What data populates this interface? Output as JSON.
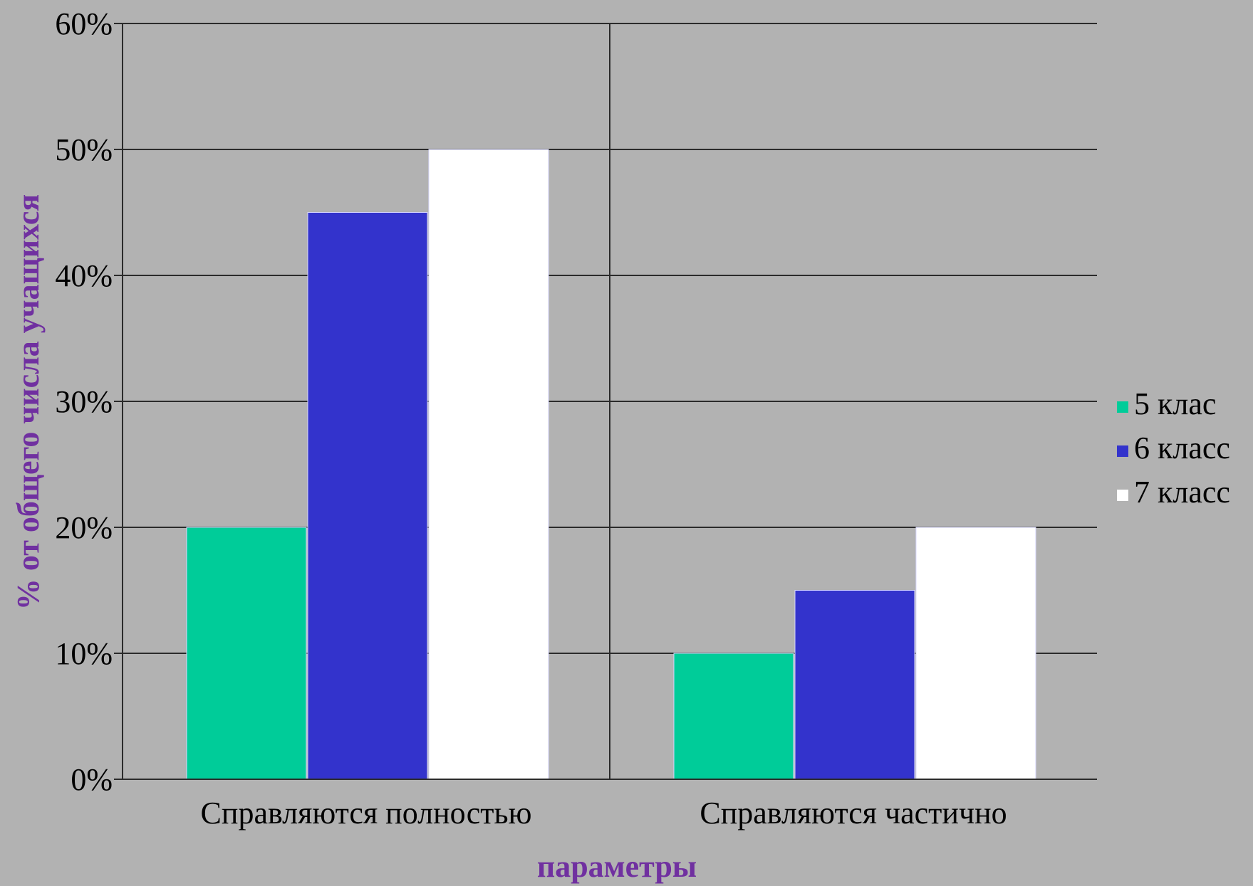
{
  "chart_data": {
    "type": "bar",
    "title": "",
    "xlabel": "параметры",
    "ylabel": "% от общего числа учащихся",
    "categories": [
      "Справляются полностью",
      "Справляются частично"
    ],
    "series": [
      {
        "name": "5 клас",
        "values": [
          20,
          10
        ],
        "color": "#00cc99"
      },
      {
        "name": "6 класс",
        "values": [
          45,
          15
        ],
        "color": "#3333cc"
      },
      {
        "name": "7 класс",
        "values": [
          50,
          20
        ],
        "color": "#ffffff"
      }
    ],
    "ylim": [
      0,
      60
    ],
    "yticks": [
      "0%",
      "10%",
      "20%",
      "30%",
      "40%",
      "50%",
      "60%"
    ],
    "ytick_values": [
      0,
      10,
      20,
      30,
      40,
      50,
      60
    ],
    "grid": true,
    "legend_position": "right",
    "axis_title_color": "#7030a0"
  }
}
